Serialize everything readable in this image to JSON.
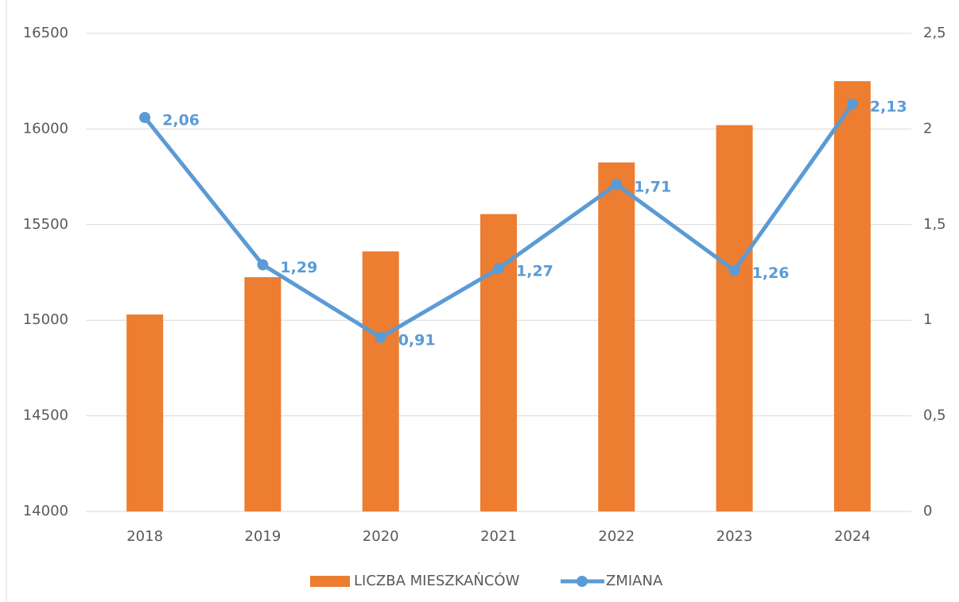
{
  "chart_data": {
    "type": "bar_line",
    "categories": [
      "2018",
      "2019",
      "2020",
      "2021",
      "2022",
      "2023",
      "2024"
    ],
    "series": [
      {
        "name": "LICZBA MIESZKAŃCÓW",
        "type": "bar",
        "color": "#ED7D31",
        "values": [
          15030,
          15225,
          15360,
          15555,
          15825,
          16020,
          16250
        ]
      },
      {
        "name": "ZMIANA",
        "type": "line",
        "axis": "y2",
        "color": "#5B9BD5",
        "values": [
          2.06,
          1.29,
          0.91,
          1.27,
          1.71,
          1.26,
          2.13
        ],
        "value_labels": [
          "2,06",
          "1,29",
          "0,91",
          "1,27",
          "1,71",
          "1,26",
          "2,13"
        ]
      }
    ],
    "ylim": [
      14000,
      16500
    ],
    "yticks": [
      14000,
      14500,
      15000,
      15500,
      16000,
      16500
    ],
    "y2lim": [
      0,
      2.5
    ],
    "y2ticks": [
      0,
      {
        "value": 0.5,
        "label": "0,5"
      },
      1,
      {
        "value": 1.5,
        "label": "1,5"
      },
      2,
      {
        "value": 2.5,
        "label": "2,5"
      }
    ],
    "grid": true,
    "legend": "bottom"
  }
}
